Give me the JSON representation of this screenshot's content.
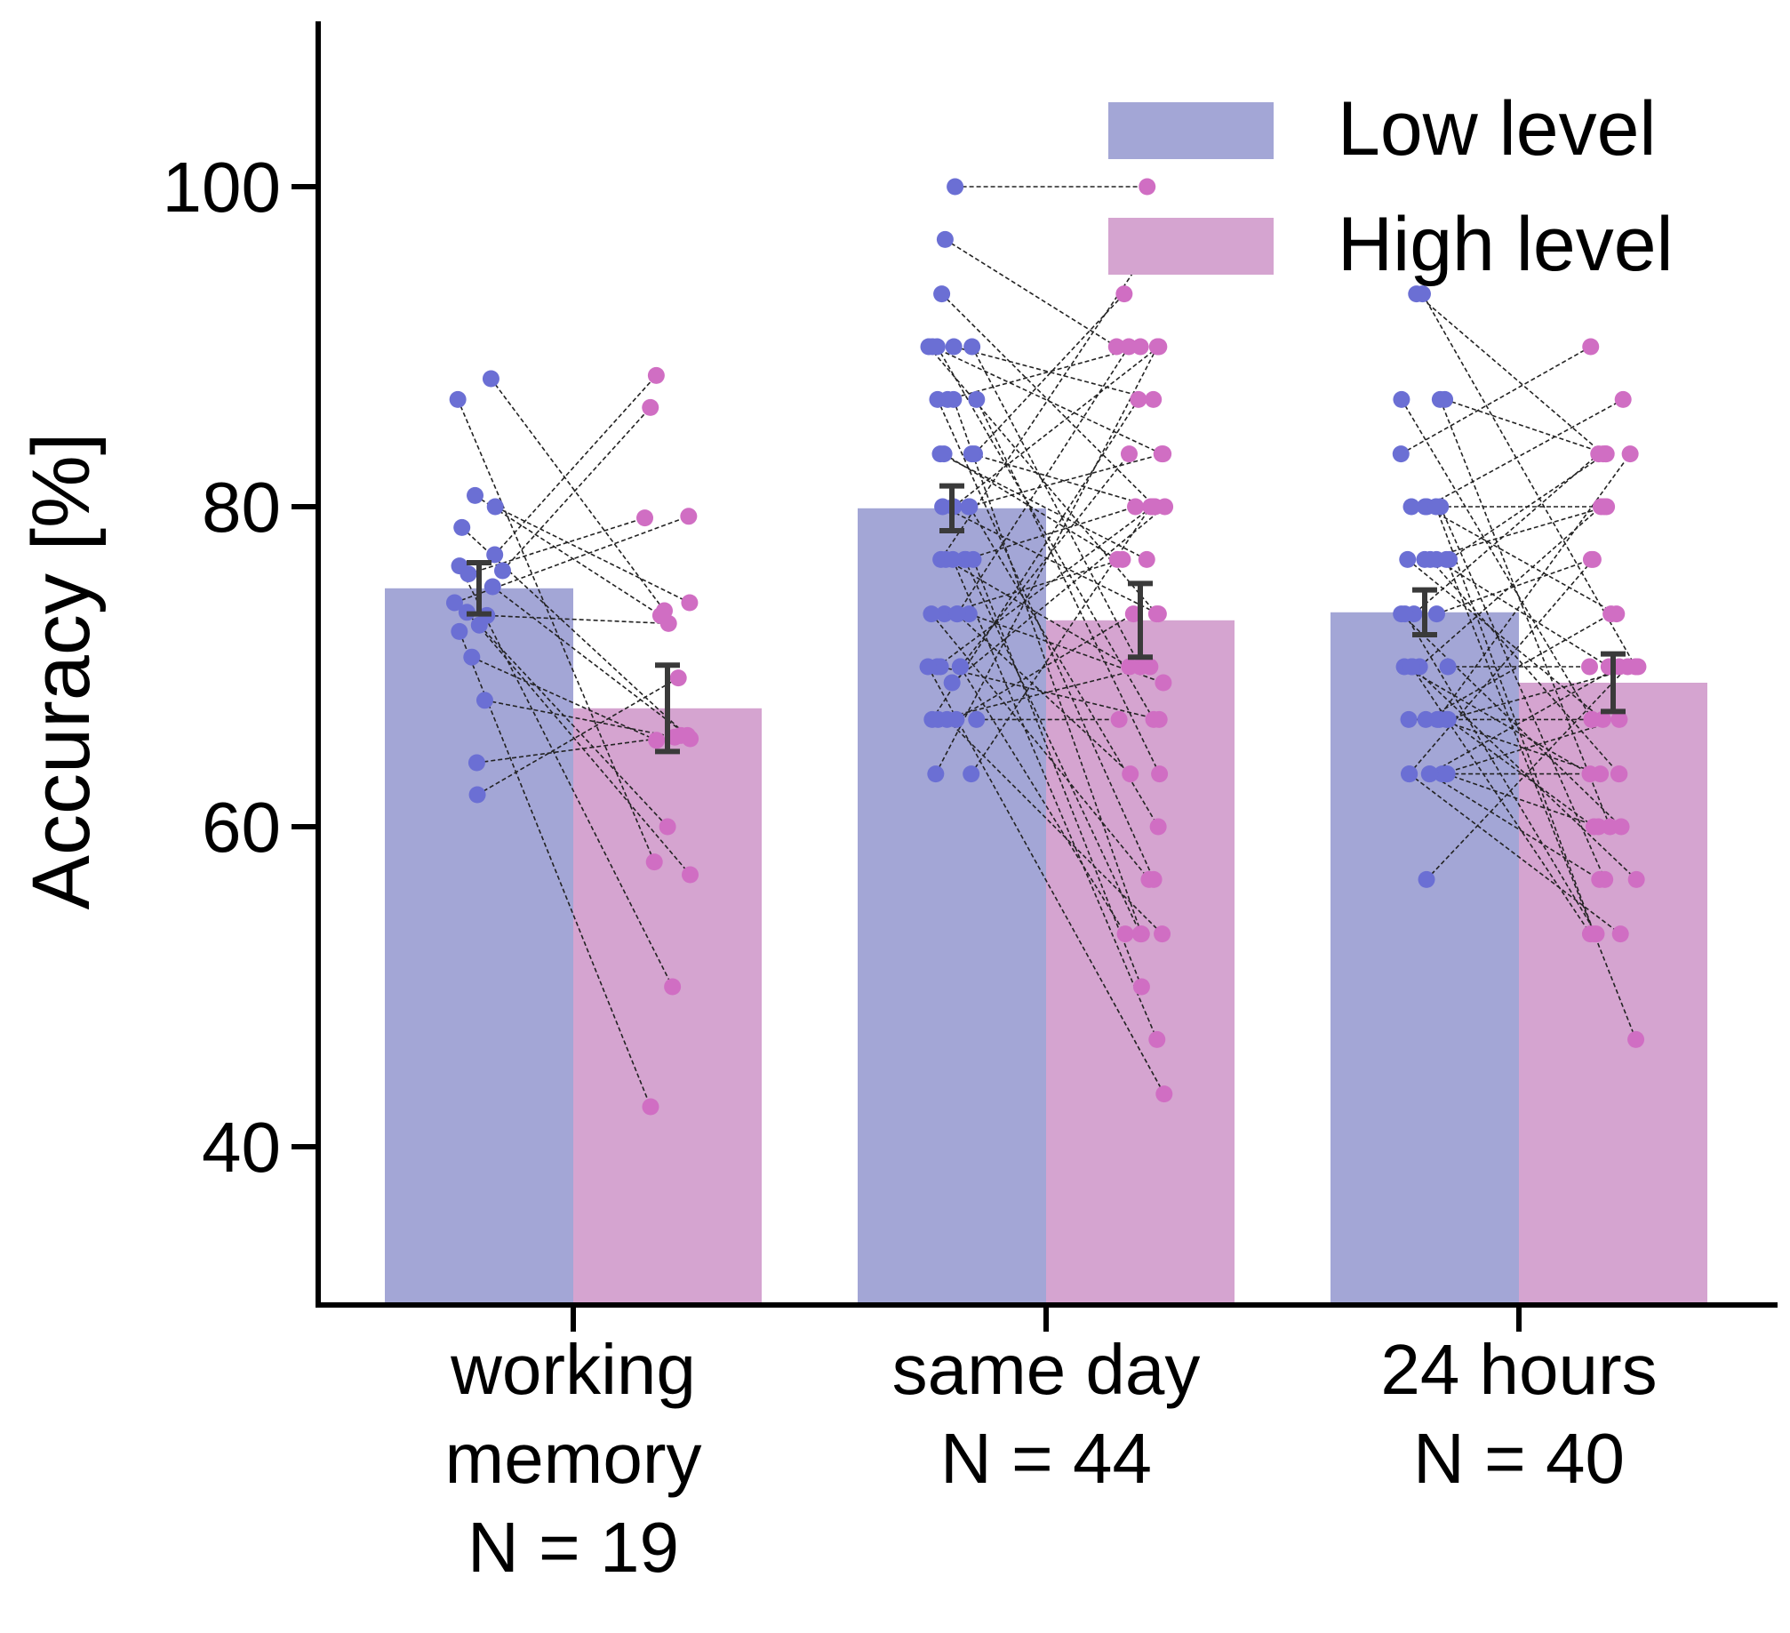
{
  "chart_data": {
    "type": "bar",
    "ylabel": "Accuracy [%]",
    "xlabel": "",
    "ylim": [
      30,
      110
    ],
    "yticks": [
      40,
      60,
      80,
      100
    ],
    "grid": false,
    "legend_position": "top-right",
    "categories": [
      [
        "working",
        "memory",
        "N = 19"
      ],
      [
        "same day",
        "N = 44"
      ],
      [
        "24 hours",
        "N = 40"
      ]
    ],
    "series": [
      {
        "name": "Low level",
        "bar_color": "#a3a6d6",
        "point_color": "#6b6fd4",
        "values": [
          74.9,
          79.9,
          73.4
        ],
        "errors": [
          1.6,
          1.4,
          1.4
        ]
      },
      {
        "name": "High level",
        "bar_color": "#d5a4d0",
        "point_color": "#d06ec3",
        "values": [
          67.4,
          72.9,
          69.0
        ],
        "errors": [
          2.7,
          2.3,
          1.8
        ]
      }
    ],
    "subjects": [
      [
        [
          88.0,
          73.5
        ],
        [
          86.7,
          57.8
        ],
        [
          80.7,
          73.2
        ],
        [
          80.0,
          74.0
        ],
        [
          78.7,
          65.5
        ],
        [
          77.0,
          88.2
        ],
        [
          76.3,
          50.0
        ],
        [
          76.0,
          86.2
        ],
        [
          75.8,
          79.3
        ],
        [
          75.0,
          65.7
        ],
        [
          74.0,
          79.4
        ],
        [
          73.4,
          57.0
        ],
        [
          73.2,
          72.7
        ],
        [
          72.6,
          60.0
        ],
        [
          72.2,
          42.5
        ],
        [
          70.6,
          65.4
        ],
        [
          67.9,
          65.6
        ],
        [
          64.0,
          65.7
        ],
        [
          62.0,
          69.3
        ]
      ],
      [
        [
          100.0,
          100.0
        ],
        [
          96.7,
          90.0
        ],
        [
          93.3,
          80.0
        ],
        [
          90.0,
          86.7
        ],
        [
          90.0,
          83.3
        ],
        [
          90.0,
          73.3
        ],
        [
          90.0,
          70.0
        ],
        [
          90.0,
          66.7
        ],
        [
          86.7,
          90.0
        ],
        [
          86.7,
          63.3
        ],
        [
          86.7,
          56.7
        ],
        [
          86.7,
          53.3
        ],
        [
          83.3,
          93.3
        ],
        [
          83.3,
          80.0
        ],
        [
          83.3,
          76.7
        ],
        [
          80.0,
          90.0
        ],
        [
          80.0,
          83.3
        ],
        [
          80.0,
          73.3
        ],
        [
          80.0,
          60.0
        ],
        [
          76.7,
          96.7
        ],
        [
          76.7,
          80.0
        ],
        [
          76.7,
          70.0
        ],
        [
          76.7,
          53.3
        ],
        [
          76.7,
          50.0
        ],
        [
          76.7,
          46.7
        ],
        [
          73.3,
          90.0
        ],
        [
          73.3,
          76.7
        ],
        [
          73.3,
          69.0
        ],
        [
          73.3,
          63.3
        ],
        [
          73.3,
          56.7
        ],
        [
          70.0,
          83.3
        ],
        [
          70.0,
          80.0
        ],
        [
          70.0,
          66.7
        ],
        [
          70.0,
          53.3
        ],
        [
          70.0,
          43.3
        ],
        [
          69.0,
          80.0
        ],
        [
          66.7,
          86.7
        ],
        [
          66.7,
          73.3
        ],
        [
          66.7,
          70.0
        ],
        [
          66.7,
          66.7
        ],
        [
          66.7,
          53.3
        ],
        [
          63.3,
          80.0
        ],
        [
          63.3,
          90.0
        ],
        [
          83.3,
          76.7
        ]
      ],
      [
        [
          93.3,
          70.0
        ],
        [
          93.3,
          83.3
        ],
        [
          86.7,
          83.3
        ],
        [
          86.7,
          66.7
        ],
        [
          86.7,
          60.0
        ],
        [
          83.3,
          90.0
        ],
        [
          80.0,
          86.7
        ],
        [
          80.0,
          80.0
        ],
        [
          80.0,
          73.3
        ],
        [
          80.0,
          56.7
        ],
        [
          80.0,
          53.3
        ],
        [
          76.7,
          83.3
        ],
        [
          76.7,
          80.0
        ],
        [
          76.7,
          70.0
        ],
        [
          76.7,
          66.7
        ],
        [
          76.7,
          63.3
        ],
        [
          76.7,
          46.7
        ],
        [
          73.3,
          83.3
        ],
        [
          73.3,
          76.7
        ],
        [
          73.3,
          60.0
        ],
        [
          73.3,
          53.3
        ],
        [
          70.0,
          80.0
        ],
        [
          70.0,
          70.0
        ],
        [
          70.0,
          63.3
        ],
        [
          70.0,
          56.7
        ],
        [
          70.0,
          53.3
        ],
        [
          66.7,
          83.3
        ],
        [
          66.7,
          73.3
        ],
        [
          66.7,
          70.0
        ],
        [
          66.7,
          66.7
        ],
        [
          66.7,
          63.3
        ],
        [
          66.7,
          60.0
        ],
        [
          63.3,
          76.7
        ],
        [
          63.3,
          70.0
        ],
        [
          63.3,
          66.7
        ],
        [
          63.3,
          63.3
        ],
        [
          63.3,
          60.0
        ],
        [
          63.3,
          56.7
        ],
        [
          63.3,
          53.3
        ],
        [
          56.7,
          70.0
        ]
      ]
    ]
  }
}
